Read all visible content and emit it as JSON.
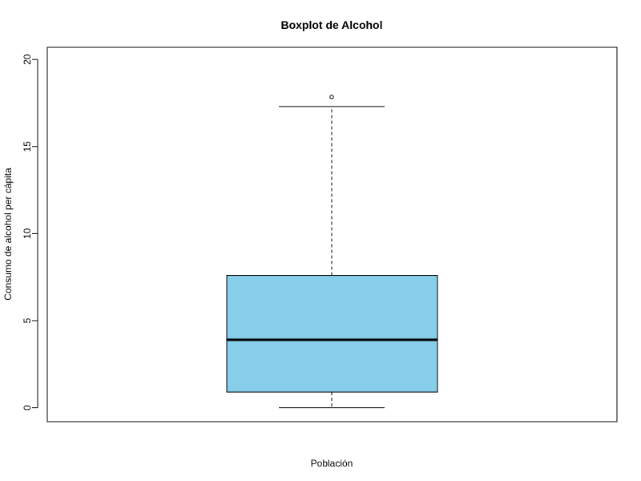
{
  "chart_data": {
    "type": "boxplot",
    "title": "Boxplot de Alcohol",
    "xlabel": "Población",
    "ylabel": "Consumo de alcohol per cápita",
    "ylim": [
      -0.8,
      20.7
    ],
    "yticks": [
      0,
      5,
      10,
      15,
      20
    ],
    "grid": false,
    "legend": "none",
    "box_color": "#87CEEB",
    "stats": {
      "lower_whisker": 0,
      "q1": 0.9,
      "median": 3.9,
      "q3": 7.6,
      "upper_whisker": 17.3,
      "outliers": [
        17.85
      ]
    }
  }
}
